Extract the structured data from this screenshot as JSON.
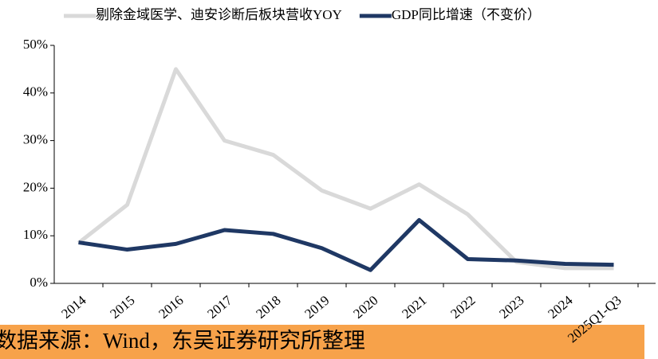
{
  "chart_data": {
    "type": "line",
    "categories": [
      "2014",
      "2015",
      "2016",
      "2017",
      "2018",
      "2019",
      "2020",
      "2021",
      "2022",
      "2023",
      "2024",
      "2025Q1-Q3"
    ],
    "series": [
      {
        "name": "剔除金域医学、迪安诊断后板块营收YOY",
        "color": "#d9d9d9",
        "values": [
          8.5,
          16.5,
          45,
          30,
          27,
          19.5,
          15.7,
          20.8,
          14.5,
          4.5,
          3.2,
          3.2
        ]
      },
      {
        "name": "GDP同比增速（不变价）",
        "color": "#1f3864",
        "values": [
          8.6,
          7.1,
          8.3,
          11.2,
          10.4,
          7.4,
          2.8,
          13.3,
          5.1,
          4.8,
          4.1,
          3.9
        ]
      }
    ],
    "ylim": [
      0,
      50
    ],
    "yticks": [
      {
        "value": 0,
        "label": "0%"
      },
      {
        "value": 10,
        "label": "10%"
      },
      {
        "value": 20,
        "label": "20%"
      },
      {
        "value": 30,
        "label": "30%"
      },
      {
        "value": 40,
        "label": "40%"
      },
      {
        "value": 50,
        "label": "50%"
      }
    ],
    "legend": "top",
    "source": "数据来源：Wind，东吴证券研究所整理"
  }
}
